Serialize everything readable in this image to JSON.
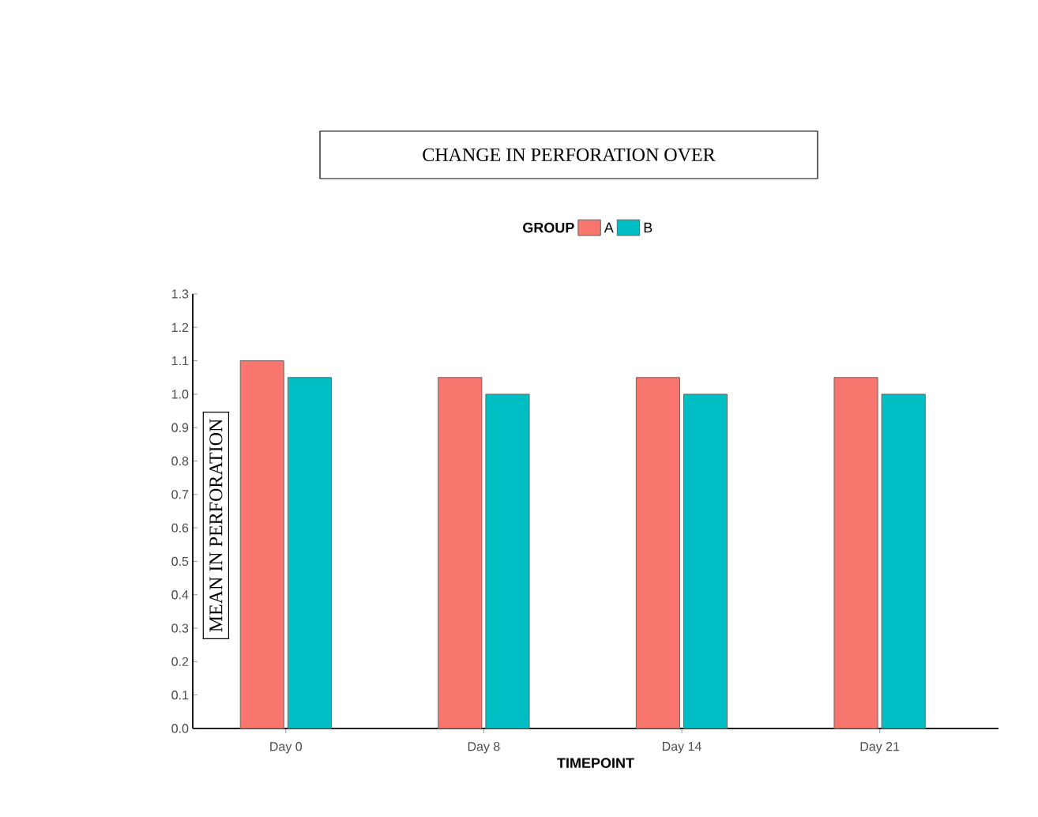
{
  "chart_data": {
    "type": "bar",
    "title": "CHANGE IN PERFORATION OVER",
    "xlabel": "TIMEPOINT",
    "ylabel": "MEAN IN PERFORATION",
    "legend_title": "GROUP",
    "categories": [
      "Day 0",
      "Day 8",
      "Day 14",
      "Day 21"
    ],
    "series": [
      {
        "name": "A",
        "color": "#f8766d",
        "values": [
          1.1,
          1.05,
          1.05,
          1.05
        ]
      },
      {
        "name": "B",
        "color": "#00bfc4",
        "values": [
          1.05,
          1.0,
          1.0,
          1.0
        ]
      }
    ],
    "ylim": [
      0,
      1.3
    ],
    "yticks": [
      {
        "value": 0,
        "label": "0.0"
      },
      0.1,
      0.2,
      0.3,
      0.4,
      0.5,
      0.6,
      0.7,
      0.8,
      0.9,
      {
        "value": 1,
        "label": "1.0"
      },
      1.1,
      1.2,
      1.3
    ],
    "grid": false,
    "legend": "top"
  }
}
